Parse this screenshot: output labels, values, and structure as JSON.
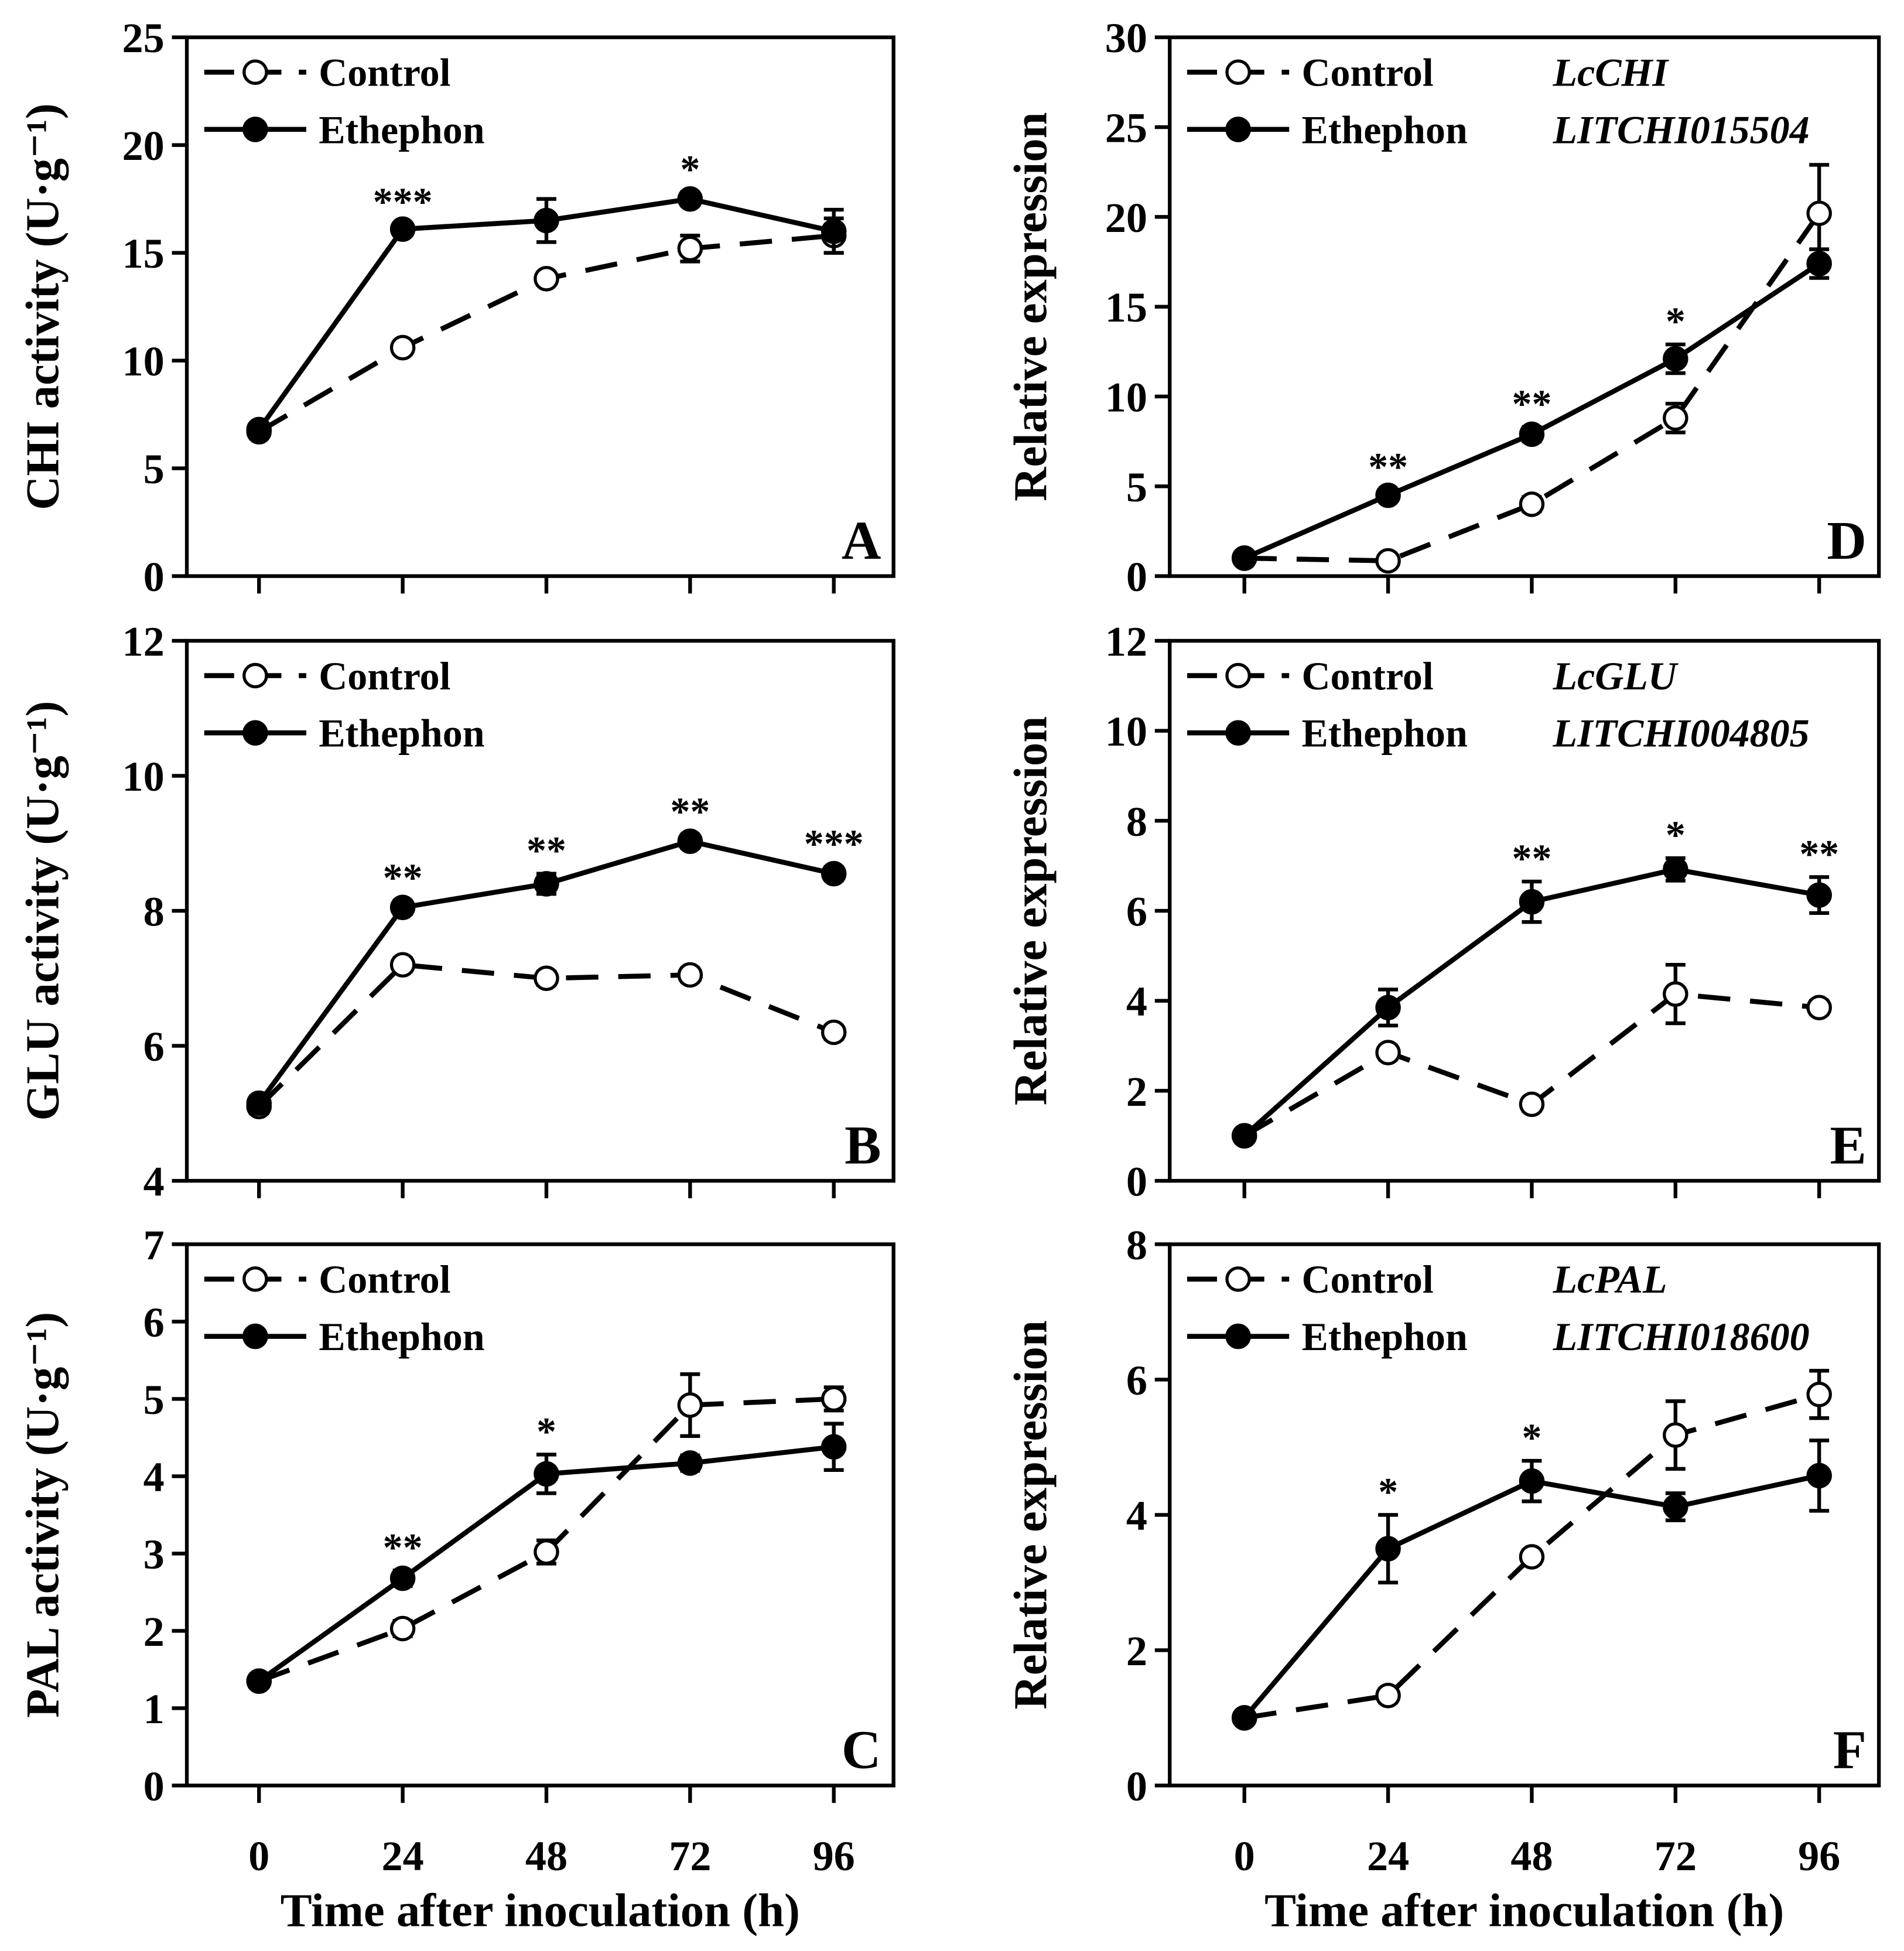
{
  "x_label": "Time after inoculation (h)",
  "chart_data": [
    {
      "type": "line",
      "panel": "A",
      "ylabel": "CHI activity (U·g⁻¹)",
      "ylim": [
        0,
        25
      ],
      "yticks": [
        0,
        5,
        10,
        15,
        20,
        25
      ],
      "x": [
        0,
        24,
        48,
        72,
        96
      ],
      "legend": [
        "Control",
        "Ethephon"
      ],
      "gene": [],
      "series": [
        {
          "name": "Control",
          "values": [
            6.7,
            10.6,
            13.8,
            15.2,
            15.8
          ],
          "err": [
            0.3,
            0.3,
            0.3,
            0.6,
            0.8
          ]
        },
        {
          "name": "Ethephon",
          "values": [
            6.8,
            16.1,
            16.5,
            17.5,
            16.0
          ],
          "err": [
            0.2,
            0.2,
            1.0,
            0.3,
            1.0
          ]
        }
      ],
      "annotations": [
        {
          "x": 24,
          "text": "***"
        },
        {
          "x": 72,
          "text": "*"
        }
      ]
    },
    {
      "type": "line",
      "panel": "D",
      "ylabel": "Relative expression",
      "ylim": [
        0,
        30
      ],
      "yticks": [
        0,
        5,
        10,
        15,
        20,
        25,
        30
      ],
      "x": [
        0,
        24,
        48,
        72,
        96
      ],
      "legend": [
        "Control",
        "Ethephon"
      ],
      "gene": [
        "LcCHI",
        "LITCHI015504"
      ],
      "series": [
        {
          "name": "Control",
          "values": [
            1.0,
            0.85,
            4.0,
            8.8,
            20.2
          ],
          "err": [
            0.1,
            0.1,
            0.4,
            0.8,
            2.7
          ]
        },
        {
          "name": "Ethephon",
          "values": [
            1.0,
            4.5,
            7.9,
            12.1,
            17.4
          ],
          "err": [
            0.1,
            0.3,
            0.4,
            0.8,
            0.8
          ]
        }
      ],
      "annotations": [
        {
          "x": 24,
          "text": "**"
        },
        {
          "x": 48,
          "text": "**"
        },
        {
          "x": 72,
          "text": "*"
        }
      ]
    },
    {
      "type": "line",
      "panel": "B",
      "ylabel": "GLU activity (U·g⁻¹)",
      "ylim": [
        4,
        12
      ],
      "yticks": [
        4,
        6,
        8,
        10,
        12
      ],
      "x": [
        0,
        24,
        48,
        72,
        96
      ],
      "legend": [
        "Control",
        "Ethephon"
      ],
      "gene": [],
      "series": [
        {
          "name": "Control",
          "values": [
            5.1,
            7.2,
            7.0,
            7.05,
            6.2
          ],
          "err": [
            0.1,
            0.1,
            0.1,
            0.1,
            0.1
          ]
        },
        {
          "name": "Ethephon",
          "values": [
            5.15,
            8.05,
            8.4,
            9.03,
            8.55
          ],
          "err": [
            0.1,
            0.1,
            0.15,
            0.1,
            0.1
          ]
        }
      ],
      "annotations": [
        {
          "x": 24,
          "text": "**"
        },
        {
          "x": 48,
          "text": "**"
        },
        {
          "x": 72,
          "text": "**"
        },
        {
          "x": 96,
          "text": "***"
        }
      ]
    },
    {
      "type": "line",
      "panel": "E",
      "ylabel": "Relative expression",
      "ylim": [
        0,
        12
      ],
      "yticks": [
        0,
        2,
        4,
        6,
        8,
        10,
        12
      ],
      "x": [
        0,
        24,
        48,
        72,
        96
      ],
      "legend": [
        "Control",
        "Ethephon"
      ],
      "gene": [
        "LcGLU",
        "LITCHI004805"
      ],
      "series": [
        {
          "name": "Control",
          "values": [
            1.0,
            2.85,
            1.7,
            4.15,
            3.85
          ],
          "err": [
            0.1,
            0.15,
            0.15,
            0.65,
            0.15
          ]
        },
        {
          "name": "Ethephon",
          "values": [
            1.0,
            3.85,
            6.2,
            6.92,
            6.35
          ],
          "err": [
            0.1,
            0.4,
            0.45,
            0.25,
            0.4
          ]
        }
      ],
      "annotations": [
        {
          "x": 48,
          "text": "**"
        },
        {
          "x": 72,
          "text": "*"
        },
        {
          "x": 96,
          "text": "**"
        }
      ]
    },
    {
      "type": "line",
      "panel": "C",
      "ylabel": "PAL activity (U·g⁻¹)",
      "ylim": [
        0,
        7
      ],
      "yticks": [
        0,
        1,
        2,
        3,
        4,
        5,
        6,
        7
      ],
      "x": [
        0,
        24,
        48,
        72,
        96
      ],
      "legend": [
        "Control",
        "Ethephon"
      ],
      "gene": [],
      "series": [
        {
          "name": "Control",
          "values": [
            1.35,
            2.03,
            3.02,
            4.92,
            5.0
          ],
          "err": [
            0.05,
            0.1,
            0.15,
            0.4,
            0.15
          ]
        },
        {
          "name": "Ethephon",
          "values": [
            1.35,
            2.68,
            4.03,
            4.17,
            4.38
          ],
          "err": [
            0.05,
            0.1,
            0.25,
            0.1,
            0.3
          ]
        }
      ],
      "annotations": [
        {
          "x": 24,
          "text": "**"
        },
        {
          "x": 48,
          "text": "*"
        }
      ]
    },
    {
      "type": "line",
      "panel": "F",
      "ylabel": "Relative expression",
      "ylim": [
        0,
        8
      ],
      "yticks": [
        0,
        2,
        4,
        6,
        8
      ],
      "x": [
        0,
        24,
        48,
        72,
        96
      ],
      "legend": [
        "Control",
        "Ethephon"
      ],
      "gene": [
        "LcPAL",
        "LITCHI018600"
      ],
      "series": [
        {
          "name": "Control",
          "values": [
            1.0,
            1.33,
            3.38,
            5.18,
            5.78
          ],
          "err": [
            0.05,
            0.1,
            0.1,
            0.5,
            0.35
          ]
        },
        {
          "name": "Ethephon",
          "values": [
            1.0,
            3.5,
            4.5,
            4.12,
            4.58
          ],
          "err": [
            0.05,
            0.5,
            0.3,
            0.2,
            0.52
          ]
        }
      ],
      "annotations": [
        {
          "x": 24,
          "text": "*"
        },
        {
          "x": 48,
          "text": "*"
        }
      ]
    }
  ]
}
